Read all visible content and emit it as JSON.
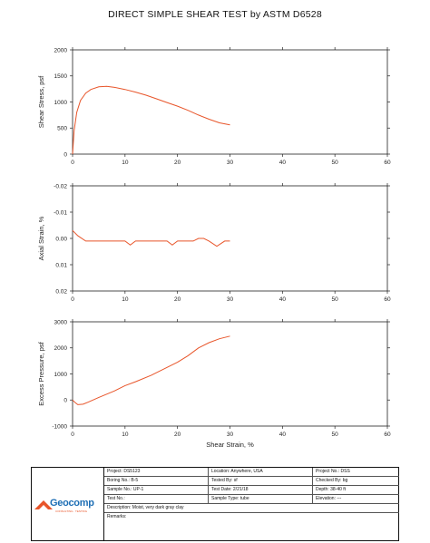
{
  "title": "DIRECT SIMPLE SHEAR TEST by ASTM D6528",
  "chart_data": [
    {
      "type": "line",
      "ylabel": "Shear Stress, psf",
      "xlim": [
        0,
        60
      ],
      "ylim": [
        0,
        2000
      ],
      "xticks": [
        "0",
        "10",
        "20",
        "30",
        "40",
        "50",
        "60"
      ],
      "yticks": [
        "0",
        "500",
        "1000",
        "1500",
        "2000"
      ],
      "series": [
        {
          "color": "#e8552a",
          "x": [
            0,
            0.3,
            0.8,
            1.5,
            2.5,
            3.5,
            5,
            6.5,
            8,
            10,
            12,
            14,
            16,
            18,
            20,
            22,
            24,
            26,
            28,
            30
          ],
          "y": [
            0,
            450,
            800,
            1030,
            1170,
            1240,
            1290,
            1300,
            1280,
            1240,
            1190,
            1130,
            1060,
            990,
            920,
            840,
            750,
            670,
            600,
            560
          ]
        }
      ]
    },
    {
      "type": "line",
      "ylabel": "Axial Strain, %",
      "xlim": [
        0,
        60
      ],
      "ylim": [
        -0.02,
        0.02
      ],
      "y_inverted": true,
      "xticks": [
        "0",
        "10",
        "20",
        "30",
        "40",
        "50",
        "60"
      ],
      "yticks": [
        "-0.02",
        "-0.01",
        "0.00",
        "0.01",
        "0.02"
      ],
      "series": [
        {
          "color": "#e8552a",
          "x": [
            0,
            1,
            2.5,
            10,
            11,
            12,
            18,
            19,
            20,
            23,
            24,
            25,
            26,
            27.5,
            29,
            30
          ],
          "y": [
            -0.003,
            -0.001,
            0.001,
            0.001,
            0.0025,
            0.001,
            0.001,
            0.0025,
            0.001,
            0.001,
            0,
            0,
            0.001,
            0.003,
            0.001,
            0.001
          ]
        }
      ]
    },
    {
      "type": "line",
      "ylabel": "Excess Pressure, psf",
      "xlabel": "Shear Strain, %",
      "xlim": [
        0,
        60
      ],
      "ylim": [
        -1000,
        3000
      ],
      "xticks": [
        "0",
        "10",
        "20",
        "30",
        "40",
        "50",
        "60"
      ],
      "yticks": [
        "-1000",
        "0",
        "1000",
        "2000",
        "3000"
      ],
      "series": [
        {
          "color": "#e8552a",
          "x": [
            0,
            0.5,
            1,
            2,
            3,
            5,
            8,
            10,
            12,
            15,
            18,
            20,
            22,
            24,
            26,
            28,
            30
          ],
          "y": [
            0,
            -100,
            -180,
            -160,
            -80,
            100,
            350,
            550,
            700,
            950,
            1250,
            1450,
            1700,
            2000,
            2200,
            2350,
            2450
          ]
        }
      ]
    }
  ],
  "info": {
    "logo_text": "Geocomp",
    "logo_tagline": "CONSULTING · TESTING",
    "project": "Project: DS5123",
    "location": "Location: Anywhere, USA",
    "project_no": "Project No.: DSS",
    "boring": "Boring No.: B-5",
    "tested_by": "Tested By: sf",
    "checked_by": "Checked By: bg",
    "sample": "Sample No.: UP-1",
    "test_date": "Test Date: 2/21/18",
    "depth": "Depth: 38-40 ft",
    "test_no": "Test No.:",
    "sample_type": "Sample Type: tube",
    "elevation": "Elevation: ---",
    "description": "Description: Moist, very dark gray clay",
    "remarks": "Remarks:"
  }
}
